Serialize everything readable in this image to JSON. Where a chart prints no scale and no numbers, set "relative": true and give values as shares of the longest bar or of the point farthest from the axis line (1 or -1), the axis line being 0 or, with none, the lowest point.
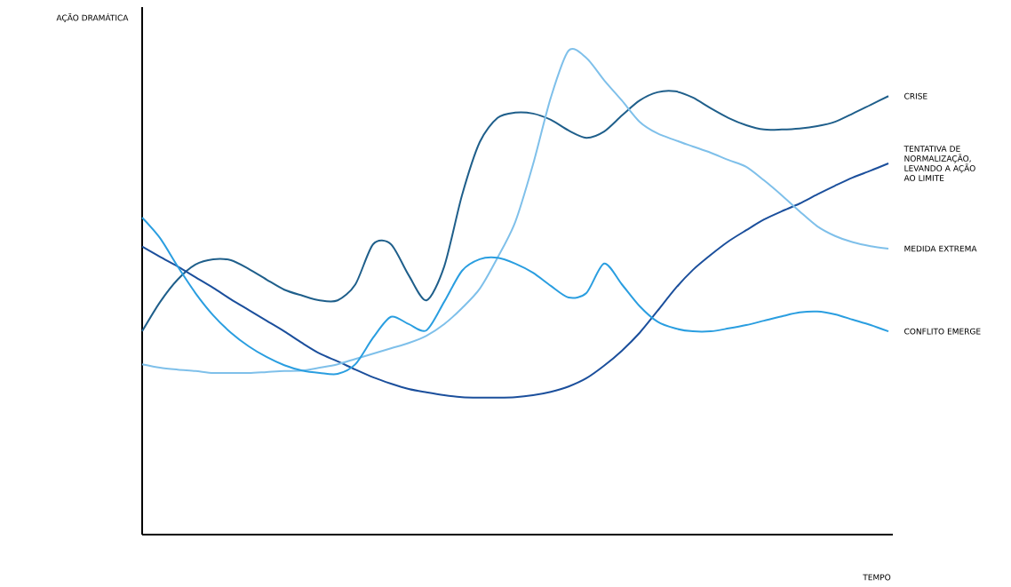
{
  "chart_data": {
    "type": "line",
    "relative": true,
    "xlabel": "TEMPO",
    "ylabel": "AÇÃO DRAMÁTICA",
    "categories": [
      null,
      null,
      null,
      null,
      null,
      null,
      null,
      null,
      null,
      null,
      null,
      null,
      null,
      null,
      null,
      null,
      null,
      null,
      null,
      null,
      null,
      null,
      null,
      null,
      null,
      null,
      null,
      null,
      null,
      null,
      null,
      null,
      null,
      null,
      null,
      null,
      null,
      null,
      null,
      null,
      null,
      null,
      null
    ],
    "series": [
      {
        "name": "CRISE",
        "color": "#1f5f8b",
        "values": [
          0.42,
          0.48,
          0.527,
          0.558,
          0.569,
          0.567,
          0.549,
          0.527,
          0.506,
          0.494,
          0.484,
          0.484,
          0.517,
          0.6,
          0.6,
          0.536,
          0.484,
          0.554,
          0.701,
          0.811,
          0.861,
          0.872,
          0.87,
          0.857,
          0.835,
          0.82,
          0.833,
          0.866,
          0.897,
          0.914,
          0.916,
          0.903,
          0.881,
          0.861,
          0.846,
          0.837,
          0.837,
          0.839,
          0.844,
          0.853,
          0.87,
          0.888,
          0.906
        ]
      },
      {
        "name": "TENTATIVA DE NORMALIZAÇÃO, LEVANDO A AÇÃO AO LIMITE",
        "color": "#1b4f9c",
        "values": [
          0.595,
          0.574,
          0.554,
          0.532,
          0.51,
          0.486,
          0.464,
          0.442,
          0.42,
          0.396,
          0.374,
          0.358,
          0.341,
          0.325,
          0.312,
          0.301,
          0.294,
          0.288,
          0.284,
          0.283,
          0.283,
          0.284,
          0.288,
          0.295,
          0.306,
          0.323,
          0.349,
          0.38,
          0.417,
          0.462,
          0.508,
          0.547,
          0.578,
          0.606,
          0.629,
          0.651,
          0.668,
          0.684,
          0.703,
          0.721,
          0.738,
          0.752,
          0.767
        ]
      },
      {
        "name": "MEDIDA EXTREMA",
        "color": "#7fc0ea",
        "values": [
          0.352,
          0.345,
          0.341,
          0.338,
          0.334,
          0.334,
          0.334,
          0.336,
          0.338,
          0.339,
          0.345,
          0.352,
          0.363,
          0.374,
          0.385,
          0.396,
          0.411,
          0.435,
          0.468,
          0.508,
          0.572,
          0.646,
          0.765,
          0.903,
          1.0,
          0.985,
          0.939,
          0.897,
          0.853,
          0.829,
          0.815,
          0.802,
          0.789,
          0.774,
          0.76,
          0.732,
          0.701,
          0.668,
          0.637,
          0.617,
          0.604,
          0.596,
          0.591
        ]
      },
      {
        "name": "CONFLITO EMERGE",
        "color": "#2a9ee0",
        "values": [
          0.655,
          0.613,
          0.554,
          0.499,
          0.453,
          0.417,
          0.389,
          0.367,
          0.35,
          0.339,
          0.334,
          0.332,
          0.352,
          0.407,
          0.45,
          0.435,
          0.422,
          0.481,
          0.545,
          0.569,
          0.572,
          0.56,
          0.541,
          0.514,
          0.49,
          0.499,
          0.56,
          0.517,
          0.472,
          0.44,
          0.426,
          0.42,
          0.42,
          0.426,
          0.433,
          0.442,
          0.451,
          0.459,
          0.461,
          0.455,
          0.444,
          0.433,
          0.42
        ]
      }
    ]
  }
}
